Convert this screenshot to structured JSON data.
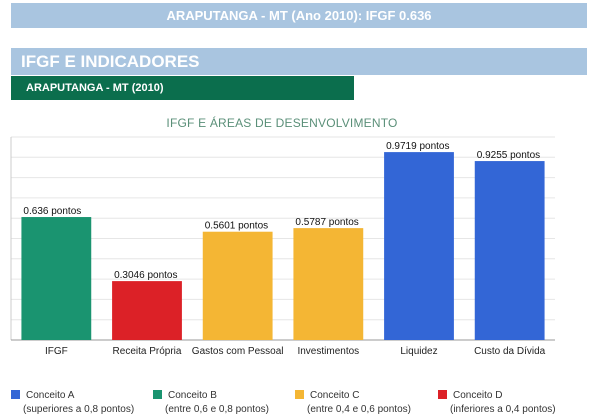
{
  "header": {
    "title": "ARAPUTANGA - MT (Ano 2010): IFGF 0.636"
  },
  "section": {
    "title": "IFGF E INDICADORES",
    "subtitle": "ARAPUTANGA - MT (2010)"
  },
  "colors": {
    "conceito_a": "#3366d6",
    "conceito_b": "#1a9470",
    "conceito_c": "#f4b634",
    "conceito_d": "#dc2127"
  },
  "chart_data": {
    "type": "bar",
    "title": "IFGF E ÁREAS DE DESENVOLVIMENTO",
    "categories": [
      "IFGF",
      "Receita Própria",
      "Gastos com Pessoal",
      "Investimentos",
      "Liquidez",
      "Custo da Dívida"
    ],
    "values": [
      0.636,
      0.3046,
      0.5601,
      0.5787,
      0.9719,
      0.9255
    ],
    "data_labels": [
      "0.636 pontos",
      "0.3046 pontos",
      "0.5601 pontos",
      "0.5787 pontos",
      "0.9719 pontos",
      "0.9255 pontos"
    ],
    "bar_colors": [
      "#1a9470",
      "#dc2127",
      "#f4b634",
      "#f4b634",
      "#3366d6",
      "#3366d6"
    ],
    "ylim": [
      0,
      1.05
    ],
    "grid": true,
    "legend_position": "bottom"
  },
  "legend": [
    {
      "label": "Conceito A",
      "note": "(superiores a 0,8 pontos)",
      "color": "#3366d6"
    },
    {
      "label": "Conceito B",
      "note": "(entre 0,6 e 0,8 pontos)",
      "color": "#1a9470"
    },
    {
      "label": "Conceito C",
      "note": "(entre 0,4 e 0,6 pontos)",
      "color": "#f4b634"
    },
    {
      "label": "Conceito D",
      "note": "(inferiores a 0,4 pontos)",
      "color": "#dc2127"
    }
  ]
}
